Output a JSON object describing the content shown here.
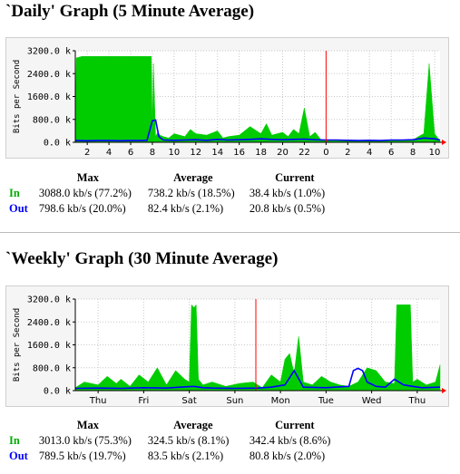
{
  "colors": {
    "in": "#00cc00",
    "out": "#0000ff",
    "now_marker": "#ff0000",
    "grid": "#c8c8c8",
    "axis": "#000000",
    "arrow": "#ff0000"
  },
  "stats_headers": {
    "max": "Max",
    "average": "Average",
    "current": "Current"
  },
  "daily": {
    "title": "`Daily' Graph (5 Minute Average)",
    "rows": [
      {
        "label": "In",
        "max": "3088.0 kb/s (77.2%)",
        "average": "738.2 kb/s (18.5%)",
        "current": "38.4 kb/s (1.0%)"
      },
      {
        "label": "Out",
        "max": "798.6 kb/s (20.0%)",
        "average": "82.4 kb/s (2.1%)",
        "current": "20.8 kb/s (0.5%)"
      }
    ]
  },
  "weekly": {
    "title": "`Weekly' Graph (30 Minute Average)",
    "rows": [
      {
        "label": "In",
        "max": "3013.0 kb/s (75.3%)",
        "average": "324.5 kb/s (8.1%)",
        "current": "342.4 kb/s (8.6%)"
      },
      {
        "label": "Out",
        "max": "789.5 kb/s (19.7%)",
        "average": "83.5 kb/s (2.1%)",
        "current": "80.8 kb/s (2.0%)"
      }
    ]
  },
  "chart_data": [
    {
      "type": "area",
      "ylabel": "Bits per Second",
      "ylim": [
        0,
        3200
      ],
      "y_ticks": [
        0,
        800,
        1600,
        2400,
        3200
      ],
      "y_tick_labels": [
        "0.0 k",
        "800.0 k",
        "1600.0 k",
        "2400.0 k",
        "3200.0 k"
      ],
      "x_tick_labels": [
        "2",
        "4",
        "6",
        "8",
        "10",
        "12",
        "14",
        "16",
        "18",
        "20",
        "22",
        "0",
        "2",
        "4",
        "6",
        "8",
        "10"
      ],
      "x_tick_hours": [
        2,
        4,
        6,
        8,
        10,
        12,
        14,
        16,
        18,
        20,
        22,
        24,
        26,
        28,
        30,
        32,
        34
      ],
      "xlim": [
        0.9,
        34.5
      ],
      "now_marker": 24,
      "grid": true,
      "series": [
        {
          "name": "In",
          "type": "area",
          "x": [
            0.9,
            1.0,
            1.5,
            2,
            3,
            4,
            5,
            6,
            7,
            7.5,
            7.9,
            8.0,
            8.1,
            8.3,
            8.5,
            8.7,
            9.0,
            9.5,
            10,
            11,
            11.5,
            12,
            13,
            14,
            14.5,
            15,
            16,
            17,
            18,
            18.5,
            19,
            20,
            20.5,
            21,
            21.5,
            22,
            22.5,
            23,
            23.5,
            24,
            25,
            26,
            27,
            28,
            29,
            30,
            31,
            32,
            32.5,
            33,
            33.5,
            34,
            34.5
          ],
          "y": [
            100,
            2950,
            3000,
            3000,
            3000,
            3000,
            3000,
            3000,
            3000,
            3000,
            3000,
            400,
            2750,
            200,
            350,
            250,
            200,
            150,
            300,
            200,
            450,
            300,
            250,
            400,
            150,
            200,
            250,
            550,
            300,
            650,
            250,
            350,
            200,
            450,
            300,
            1200,
            200,
            350,
            100,
            50,
            50,
            80,
            60,
            50,
            40,
            50,
            60,
            80,
            200,
            300,
            2750,
            300,
            50
          ]
        },
        {
          "name": "Out",
          "type": "line",
          "x": [
            0.9,
            1,
            2,
            3,
            4,
            5,
            6,
            7,
            7.5,
            8,
            8.3,
            8.6,
            9,
            10,
            11,
            12,
            13,
            14,
            15,
            16,
            17,
            18,
            19,
            20,
            21,
            22,
            23,
            24,
            25,
            26,
            27,
            28,
            29,
            30,
            31,
            32,
            33,
            34,
            34.5
          ],
          "y": [
            60,
            60,
            55,
            60,
            60,
            55,
            60,
            60,
            70,
            750,
            780,
            200,
            80,
            70,
            80,
            90,
            70,
            100,
            80,
            90,
            100,
            120,
            100,
            90,
            100,
            110,
            90,
            80,
            80,
            70,
            60,
            70,
            60,
            80,
            80,
            90,
            150,
            120,
            80
          ]
        }
      ]
    },
    {
      "type": "area",
      "ylabel": "Bits per Second",
      "ylim": [
        0,
        3200
      ],
      "y_ticks": [
        0,
        800,
        1600,
        2400,
        3200
      ],
      "y_tick_labels": [
        "0.0 k",
        "800.0 k",
        "1600.0 k",
        "2400.0 k",
        "3200.0 k"
      ],
      "x_tick_labels": [
        "Thu",
        "Fri",
        "Sat",
        "Sun",
        "Mon",
        "Tue",
        "Wed",
        "Thu"
      ],
      "x_tick_days": [
        0.5,
        1.5,
        2.5,
        3.5,
        4.5,
        5.5,
        6.5,
        7.5
      ],
      "xlim": [
        0,
        8
      ],
      "now_marker": 3.96,
      "grid": true,
      "series": [
        {
          "name": "In",
          "type": "area",
          "x": [
            0,
            0.2,
            0.5,
            0.7,
            0.9,
            1.0,
            1.2,
            1.4,
            1.6,
            1.8,
            2.0,
            2.2,
            2.4,
            2.5,
            2.55,
            2.6,
            2.65,
            2.7,
            2.8,
            3.0,
            3.3,
            3.6,
            3.9,
            4.1,
            4.3,
            4.5,
            4.6,
            4.7,
            4.8,
            4.9,
            5.0,
            5.2,
            5.4,
            5.6,
            5.8,
            6.0,
            6.2,
            6.4,
            6.6,
            6.8,
            7.0,
            7.05,
            7.1,
            7.2,
            7.3,
            7.35,
            7.4,
            7.5,
            7.7,
            7.9,
            8.0
          ],
          "y": [
            100,
            300,
            200,
            500,
            250,
            400,
            150,
            550,
            300,
            800,
            200,
            700,
            400,
            300,
            3000,
            2900,
            3000,
            400,
            200,
            300,
            150,
            250,
            300,
            100,
            550,
            300,
            1100,
            1300,
            600,
            1900,
            300,
            200,
            500,
            300,
            200,
            150,
            300,
            800,
            700,
            300,
            250,
            3000,
            3000,
            3000,
            3000,
            3000,
            300,
            400,
            200,
            300,
            900
          ]
        },
        {
          "name": "Out",
          "type": "line",
          "x": [
            0,
            0.5,
            1,
            1.5,
            2,
            2.3,
            2.6,
            2.8,
            3,
            3.5,
            4,
            4.3,
            4.6,
            4.8,
            5,
            5.5,
            6,
            6.1,
            6.2,
            6.3,
            6.4,
            6.6,
            6.8,
            7,
            7.2,
            7.4,
            7.6,
            8
          ],
          "y": [
            80,
            90,
            80,
            100,
            90,
            120,
            150,
            100,
            90,
            80,
            90,
            120,
            200,
            700,
            120,
            100,
            150,
            700,
            780,
            700,
            300,
            150,
            120,
            400,
            200,
            150,
            100,
            120
          ]
        }
      ]
    }
  ]
}
